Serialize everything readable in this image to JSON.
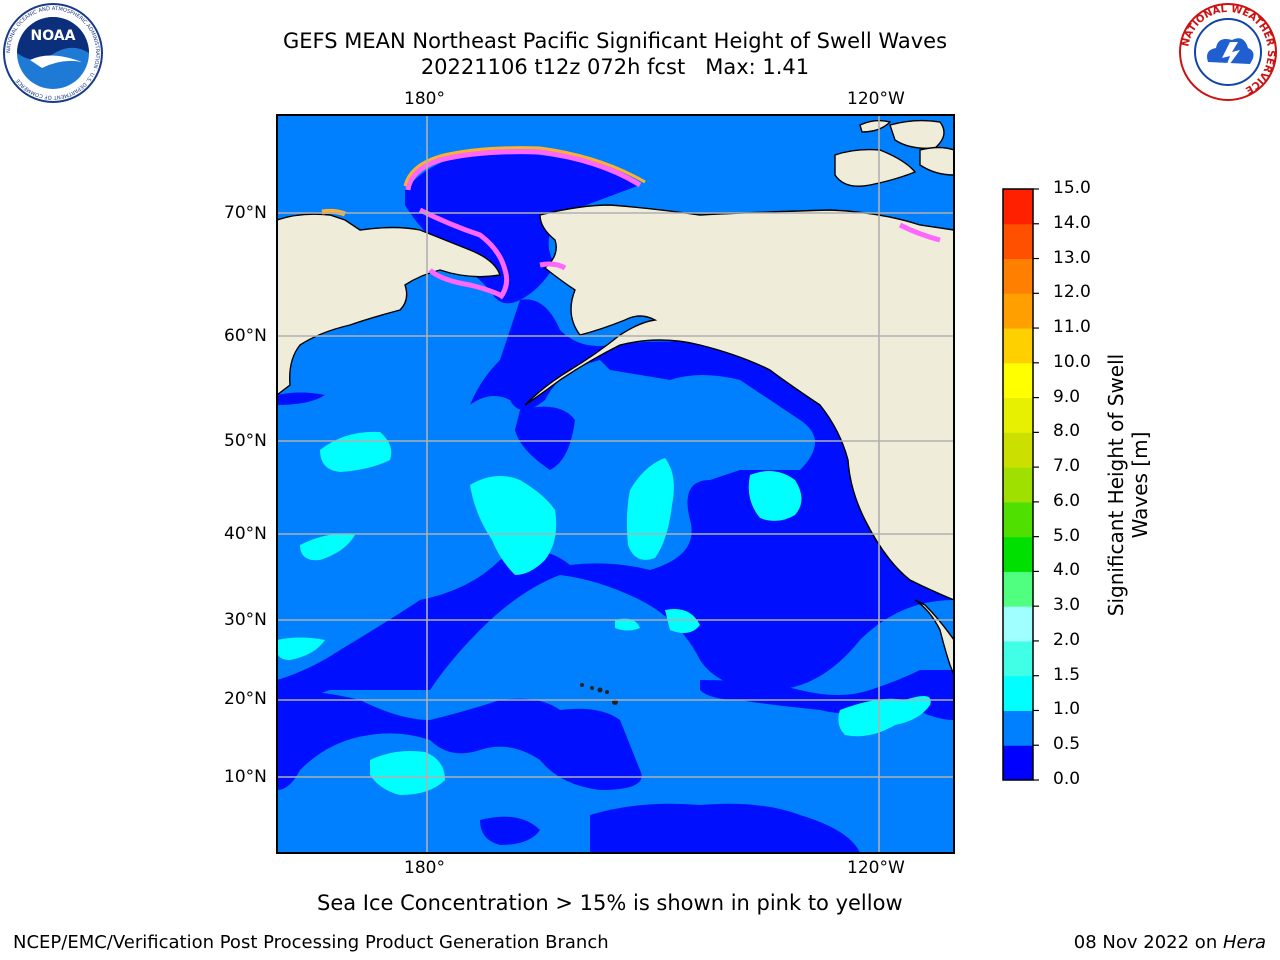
{
  "header": {
    "title_line1": "GEFS MEAN Northeast Pacific Significant Height of Swell Waves",
    "title_line2": "20221106 t12z 072h fcst   Max: 1.41"
  },
  "logos": {
    "noaa_text": "NOAA",
    "noaa_ring_text": "NATIONAL OCEANIC AND ATMOSPHERIC ADMINISTRATION · U.S. DEPARTMENT OF COMMERCE",
    "nws_ring_text": "NATIONAL WEATHER SERVICE"
  },
  "map": {
    "lon_labels_top": [
      "180°",
      "120°W"
    ],
    "lon_labels_bottom": [
      "180°",
      "120°W"
    ],
    "lat_labels": [
      "70°N",
      "60°N",
      "50°N",
      "40°N",
      "30°N",
      "20°N",
      "10°N"
    ],
    "colors": {
      "ocean_deep": "#0010ff",
      "ocean_mid": "#0080ff",
      "ocean_light": "#00ffff",
      "land": "#efedda",
      "ice_pink": "#ff66ff",
      "ice_orange": "#ffb030"
    }
  },
  "colorbar": {
    "title_line1": "Significant Height of Swell",
    "title_line2": "Waves [m]",
    "tick_labels": [
      "0.0",
      "0.5",
      "1.0",
      "1.5",
      "2.0",
      "3.0",
      "4.0",
      "5.0",
      "6.0",
      "7.0",
      "8.0",
      "9.0",
      "10.0",
      "11.0",
      "12.0",
      "13.0",
      "14.0",
      "15.0"
    ],
    "colors": [
      "#0000ff",
      "#0080ff",
      "#00ffff",
      "#40ffe6",
      "#a0ffff",
      "#50ff80",
      "#00e000",
      "#50e000",
      "#a0e000",
      "#cce000",
      "#e6f000",
      "#ffff00",
      "#ffd000",
      "#ffa000",
      "#ff8000",
      "#ff5000",
      "#ff2000"
    ]
  },
  "notes": {
    "sea_ice": "Sea Ice Concentration > 15% is shown in pink to yellow",
    "footer_left": "NCEP/EMC/Verification Post Processing Product Generation Branch",
    "footer_right_prefix": "08 Nov 2022 on ",
    "footer_right_host": "Hera"
  }
}
